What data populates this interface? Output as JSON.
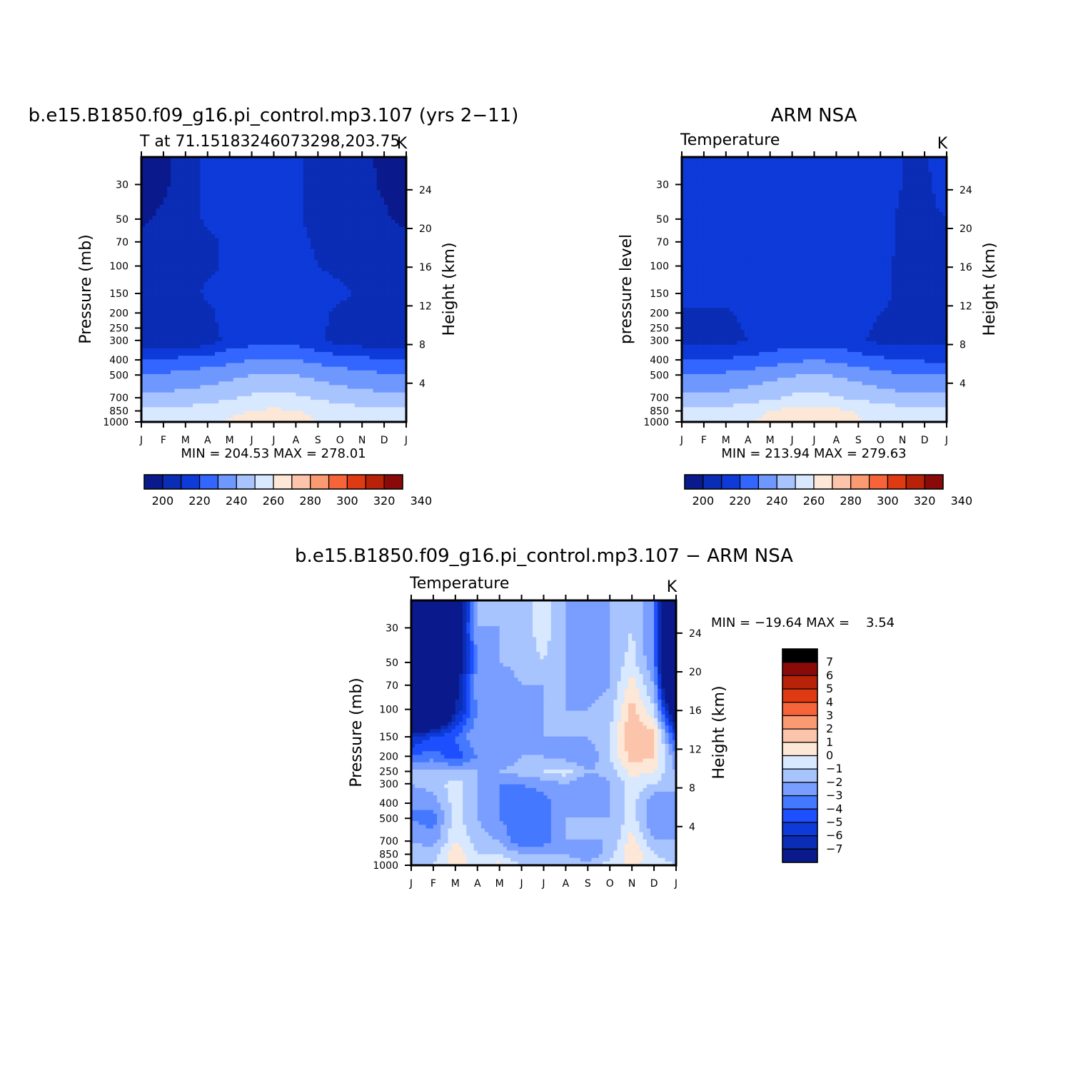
{
  "colors": {
    "temperature": [
      "#0a1a8c",
      "#0b2cb4",
      "#0d3ad8",
      "#3366ff",
      "#6f98ff",
      "#a8c4ff",
      "#d8e8ff",
      "#fde7d6",
      "#fcc5ab",
      "#fa9a70",
      "#f8643a",
      "#e03a12",
      "#b82208",
      "#8a0a0a"
    ],
    "difference": [
      "#0a1a8c",
      "#0b2cb4",
      "#0d3ad8",
      "#1e4fff",
      "#4478ff",
      "#799eff",
      "#a8c4ff",
      "#d8e8ff",
      "#fde7d6",
      "#fcc5ab",
      "#fa9a70",
      "#f8643a",
      "#e03a12",
      "#b82208",
      "#8a0a0a"
    ]
  },
  "chart_data": [
    {
      "id": "model",
      "type": "heatmap",
      "title": "b.e15.B1850.f09_g16.pi_control.mp3.107 (yrs 2−11)",
      "subtitle": "T at 71.15183246073298,203.75",
      "units": "K",
      "xlabel": "",
      "ylabel": "Pressure (mb)",
      "right_label": "Height (km)",
      "x_ticks": [
        "J",
        "F",
        "M",
        "A",
        "M",
        "J",
        "J",
        "A",
        "S",
        "O",
        "N",
        "D",
        "J"
      ],
      "y_ticks": [
        30,
        50,
        70,
        100,
        150,
        200,
        250,
        300,
        400,
        500,
        700,
        850,
        1000
      ],
      "y_range": [
        20,
        1000
      ],
      "y_scale": "log",
      "right_ticks": [
        24,
        20,
        16,
        12,
        8,
        4
      ],
      "stats_text": "MIN = 204.53 MAX = 278.01",
      "min": 204.53,
      "max": 278.01,
      "colorbar": {
        "levels": [
          200,
          210,
          220,
          230,
          240,
          250,
          260,
          270,
          280,
          290,
          300,
          310,
          320,
          330,
          340
        ],
        "labels": [
          "200",
          "220",
          "240",
          "260",
          "280",
          "300",
          "320",
          "340"
        ],
        "orientation": "horizontal"
      },
      "grid_months": [
        "J",
        "F",
        "M",
        "A",
        "M",
        "J",
        "J",
        "A",
        "S",
        "O",
        "N",
        "D",
        "J"
      ],
      "grid_pressure": [
        20,
        30,
        50,
        70,
        100,
        150,
        200,
        250,
        300,
        400,
        500,
        700,
        850,
        1000
      ],
      "z": [
        [
          206,
          207,
          215,
          222,
          222,
          222,
          222,
          222,
          215,
          214,
          211,
          209,
          206
        ],
        [
          207,
          208,
          215,
          222,
          222,
          222,
          221,
          222,
          215,
          214,
          212,
          209,
          207
        ],
        [
          208,
          212,
          214,
          222,
          222,
          222,
          222,
          222,
          216,
          214,
          213,
          211,
          208
        ],
        [
          213,
          214,
          215,
          218,
          222,
          222,
          222,
          222,
          219,
          215,
          214,
          213,
          213
        ],
        [
          214,
          214,
          215,
          218,
          222,
          222,
          222,
          222,
          220,
          218,
          217,
          215,
          214
        ],
        [
          215,
          215,
          215,
          222,
          223,
          223,
          223,
          223,
          223,
          222,
          218,
          215,
          215
        ],
        [
          214,
          214,
          214,
          217,
          225,
          225,
          225,
          225,
          222,
          218,
          216,
          215,
          214
        ],
        [
          214,
          213,
          213,
          216,
          225,
          226,
          226,
          226,
          222,
          217,
          215,
          214,
          214
        ],
        [
          213,
          212,
          212,
          214,
          224,
          226,
          226,
          226,
          222,
          216,
          214,
          213,
          213
        ],
        [
          230,
          231,
          233,
          235,
          237,
          240,
          241,
          240,
          237,
          235,
          233,
          231,
          230
        ],
        [
          240,
          241,
          243,
          245,
          247,
          250,
          251,
          250,
          247,
          245,
          243,
          241,
          240
        ],
        [
          252,
          253,
          254,
          256,
          259,
          262,
          263,
          262,
          259,
          256,
          254,
          253,
          252
        ],
        [
          262,
          262,
          263,
          265,
          268,
          270,
          272,
          270,
          268,
          265,
          263,
          262,
          262
        ],
        [
          265,
          265,
          266,
          268,
          271,
          274,
          277,
          274,
          270,
          267,
          265,
          265,
          265
        ]
      ]
    },
    {
      "id": "obs",
      "type": "heatmap",
      "title": "ARM NSA",
      "subtitle": "Temperature",
      "units": "K",
      "xlabel": "",
      "ylabel": "pressure level",
      "right_label": "Height (km)",
      "x_ticks": [
        "J",
        "F",
        "M",
        "A",
        "M",
        "J",
        "J",
        "A",
        "S",
        "O",
        "N",
        "D",
        "J"
      ],
      "y_ticks": [
        30,
        50,
        70,
        100,
        150,
        200,
        250,
        300,
        400,
        500,
        700,
        850,
        1000
      ],
      "y_range": [
        20,
        1000
      ],
      "y_scale": "log",
      "right_ticks": [
        24,
        20,
        16,
        12,
        8,
        4
      ],
      "stats_text": "MIN = 213.94 MAX = 279.63",
      "min": 213.94,
      "max": 279.63,
      "colorbar": {
        "levels": [
          200,
          210,
          220,
          230,
          240,
          250,
          260,
          270,
          280,
          290,
          300,
          310,
          320,
          330,
          340
        ],
        "labels": [
          "200",
          "220",
          "240",
          "260",
          "280",
          "300",
          "320",
          "340"
        ],
        "orientation": "horizontal"
      },
      "grid_months": [
        "J",
        "F",
        "M",
        "A",
        "M",
        "J",
        "J",
        "A",
        "S",
        "O",
        "N",
        "D",
        "J"
      ],
      "grid_pressure": [
        20,
        30,
        50,
        70,
        100,
        150,
        200,
        250,
        300,
        400,
        500,
        700,
        850,
        1000
      ],
      "z": [
        [
          225,
          225,
          225,
          225,
          225,
          225,
          228,
          225,
          225,
          222,
          220,
          219,
          224
        ],
        [
          224,
          224,
          225,
          225,
          225,
          225,
          225,
          225,
          225,
          222,
          220,
          219,
          222
        ],
        [
          224,
          224,
          224,
          225,
          225,
          225,
          225,
          225,
          225,
          222,
          219,
          219,
          220
        ],
        [
          224,
          224,
          224,
          224,
          225,
          225,
          225,
          225,
          224,
          222,
          219,
          219,
          220
        ],
        [
          224,
          224,
          224,
          224,
          224,
          225,
          225,
          225,
          224,
          221,
          219,
          219,
          220
        ],
        [
          222,
          222,
          222,
          223,
          224,
          225,
          225,
          225,
          223,
          221,
          219,
          219,
          220
        ],
        [
          219,
          219,
          219,
          222,
          224,
          225,
          225,
          225,
          223,
          220,
          219,
          219,
          219
        ],
        [
          217,
          217,
          218,
          221,
          223,
          225,
          225,
          225,
          222,
          219,
          218,
          218,
          218
        ],
        [
          216,
          216,
          217,
          220,
          223,
          225,
          225,
          225,
          221,
          218,
          217,
          217,
          217
        ],
        [
          229,
          230,
          231,
          233,
          235,
          238,
          240,
          238,
          235,
          232,
          230,
          229,
          229
        ],
        [
          240,
          241,
          242,
          244,
          247,
          249,
          251,
          249,
          246,
          243,
          241,
          240,
          240
        ],
        [
          252,
          252,
          253,
          255,
          258,
          262,
          264,
          261,
          258,
          255,
          253,
          252,
          252
        ],
        [
          263,
          263,
          264,
          266,
          270,
          273,
          274,
          272,
          269,
          266,
          264,
          263,
          263
        ],
        [
          266,
          266,
          267,
          269,
          273,
          276,
          278,
          275,
          271,
          268,
          266,
          265,
          266
        ]
      ]
    },
    {
      "id": "diff",
      "type": "heatmap",
      "title": "b.e15.B1850.f09_g16.pi_control.mp3.107 − ARM NSA",
      "subtitle": "Temperature",
      "units": "K",
      "xlabel": "",
      "ylabel": "Pressure (mb)",
      "right_label": "Height (km)",
      "x_ticks": [
        "J",
        "F",
        "M",
        "A",
        "M",
        "J",
        "J",
        "A",
        "S",
        "O",
        "N",
        "D",
        "J"
      ],
      "y_ticks": [
        30,
        50,
        70,
        100,
        150,
        200,
        250,
        300,
        400,
        500,
        700,
        850,
        1000
      ],
      "y_range": [
        20,
        1000
      ],
      "y_scale": "log",
      "right_ticks": [
        24,
        20,
        16,
        12,
        8,
        4
      ],
      "stats_text": "MIN = −19.64 MAX =    3.54",
      "min": -19.64,
      "max": 3.54,
      "colorbar": {
        "levels": [
          -8,
          -7,
          -6,
          -5,
          -4,
          -3,
          -2,
          -1,
          0,
          1,
          2,
          3,
          4,
          5,
          6,
          7,
          8
        ],
        "labels": [
          "7",
          "6",
          "5",
          "4",
          "3",
          "2",
          "1",
          "0",
          "−1",
          "−2",
          "−3",
          "−4",
          "−5",
          "−6",
          "−7"
        ],
        "orientation": "vertical"
      },
      "grid_months": [
        "J",
        "F",
        "M",
        "A",
        "M",
        "J",
        "J",
        "A",
        "S",
        "O",
        "N",
        "D",
        "J"
      ],
      "grid_pressure": [
        20,
        30,
        50,
        70,
        100,
        150,
        200,
        250,
        300,
        400,
        500,
        700,
        850,
        1000
      ],
      "z": [
        [
          -19,
          -19,
          -10,
          -2,
          -2,
          -1.5,
          -0.5,
          -2,
          -2.5,
          -2,
          -1,
          -3,
          -19
        ],
        [
          -19,
          -18,
          -9,
          -2,
          -2,
          -1.5,
          -0.5,
          -2,
          -2.5,
          -2,
          -1,
          -3,
          -19
        ],
        [
          -19,
          -18,
          -9,
          -3,
          -2,
          -1.5,
          -1,
          -2,
          -2.5,
          -2,
          -0.5,
          -3,
          -18
        ],
        [
          -18,
          -17,
          -8,
          -2,
          -3,
          -2,
          -2,
          -2,
          -2.5,
          -2,
          0.5,
          -2,
          -15
        ],
        [
          -15,
          -14,
          -7,
          -3,
          -3,
          -3,
          -2,
          -2,
          -2,
          -1.5,
          1.5,
          -1,
          -10
        ],
        [
          -6,
          -5,
          -4,
          -2,
          -3,
          -2.5,
          -2,
          -2,
          -2,
          -1,
          2,
          1.5,
          -5
        ],
        [
          -4,
          -3.5,
          -4.5,
          -3,
          -3,
          -2,
          -2,
          -2.5,
          -3,
          -1,
          1.5,
          1,
          -3
        ],
        [
          -2,
          -1.5,
          -2,
          -2,
          -2,
          -1.5,
          -1,
          -0.5,
          -2,
          -1.5,
          0.5,
          0,
          -2
        ],
        [
          -2,
          -1.5,
          -0.5,
          -2,
          -3,
          -3,
          -2.5,
          -2,
          -3,
          -2,
          -0.5,
          -1,
          -2
        ],
        [
          -3,
          -2.5,
          -0.5,
          -2,
          -3,
          -4,
          -3.5,
          -2,
          -3,
          -2,
          -0.5,
          -3,
          -2
        ],
        [
          -3,
          -3.5,
          -0.5,
          -2,
          -3,
          -4,
          -3.5,
          -2,
          -2,
          -2,
          -0.5,
          -3,
          -2
        ],
        [
          -2,
          -2.5,
          0,
          -1.5,
          -2,
          -4,
          -3.5,
          -2,
          -2,
          -2,
          0.5,
          -2,
          -2
        ],
        [
          -1.5,
          -1.5,
          0.8,
          -1,
          -1,
          -2,
          -2,
          -2,
          -3,
          -1.5,
          1,
          -1,
          -1.5
        ],
        [
          -1,
          -1,
          0.5,
          -0.5,
          0.3,
          -1,
          -1,
          -1,
          -1.5,
          -0.5,
          0.2,
          -0.5,
          -1
        ]
      ]
    }
  ]
}
